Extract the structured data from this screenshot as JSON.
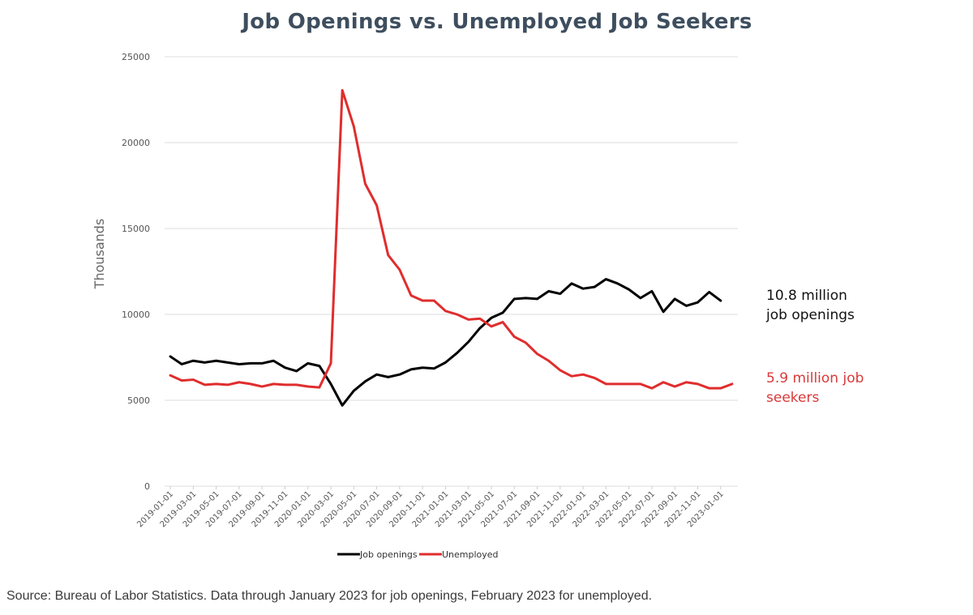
{
  "chart_data": {
    "type": "line",
    "title": "Job Openings vs. Unemployed Job Seekers",
    "xlabel": "",
    "ylabel": "Thousands",
    "ylim": [
      0,
      25000
    ],
    "yticks": [
      0,
      5000,
      10000,
      15000,
      20000,
      25000
    ],
    "grid": true,
    "legend_position": "bottom",
    "x": [
      "2019-01-01",
      "2019-02-01",
      "2019-03-01",
      "2019-04-01",
      "2019-05-01",
      "2019-06-01",
      "2019-07-01",
      "2019-08-01",
      "2019-09-01",
      "2019-10-01",
      "2019-11-01",
      "2019-12-01",
      "2020-01-01",
      "2020-02-01",
      "2020-03-01",
      "2020-04-01",
      "2020-05-01",
      "2020-06-01",
      "2020-07-01",
      "2020-08-01",
      "2020-09-01",
      "2020-10-01",
      "2020-11-01",
      "2020-12-01",
      "2021-01-01",
      "2021-02-01",
      "2021-03-01",
      "2021-04-01",
      "2021-05-01",
      "2021-06-01",
      "2021-07-01",
      "2021-08-01",
      "2021-09-01",
      "2021-10-01",
      "2021-11-01",
      "2021-12-01",
      "2022-01-01",
      "2022-02-01",
      "2022-03-01",
      "2022-04-01",
      "2022-05-01",
      "2022-06-01",
      "2022-07-01",
      "2022-08-01",
      "2022-09-01",
      "2022-10-01",
      "2022-11-01",
      "2022-12-01",
      "2023-01-01",
      "2023-02-01"
    ],
    "x_tick_labels": [
      "2019-01-01",
      "2019-03-01",
      "2019-05-01",
      "2019-07-01",
      "2019-09-01",
      "2019-11-01",
      "2020-01-01",
      "2020-03-01",
      "2020-05-01",
      "2020-07-01",
      "2020-09-01",
      "2020-11-01",
      "2021-01-01",
      "2021-03-01",
      "2021-05-01",
      "2021-07-01",
      "2021-09-01",
      "2021-11-01",
      "2022-01-01",
      "2022-03-01",
      "2022-05-01",
      "2022-07-01",
      "2022-09-01",
      "2022-11-01",
      "2023-01-01"
    ],
    "series": [
      {
        "name": "Job openings",
        "color": "#000000",
        "values": [
          7550,
          7100,
          7300,
          7200,
          7300,
          7200,
          7100,
          7150,
          7150,
          7300,
          6900,
          6700,
          7150,
          7000,
          5950,
          4700,
          5550,
          6100,
          6500,
          6350,
          6500,
          6800,
          6900,
          6850,
          7200,
          7750,
          8400,
          9200,
          9800,
          10100,
          10900,
          10950,
          10900,
          11350,
          11200,
          11800,
          11500,
          11600,
          12050,
          11800,
          11450,
          10950,
          11350,
          10150,
          10900,
          10500,
          10700,
          11300,
          10800,
          null
        ]
      },
      {
        "name": "Unemployed",
        "color": "#e02d2d",
        "values": [
          6450,
          6150,
          6200,
          5900,
          5950,
          5900,
          6050,
          5950,
          5800,
          5950,
          5900,
          5900,
          5800,
          5750,
          7150,
          23050,
          20950,
          17600,
          16350,
          13450,
          12600,
          11100,
          10800,
          10800,
          10200,
          10000,
          9700,
          9750,
          9300,
          9550,
          8700,
          8350,
          7700,
          7300,
          6750,
          6400,
          6500,
          6300,
          5950,
          5950,
          5950,
          5950,
          5700,
          6050,
          5800,
          6050,
          5950,
          5700,
          5700,
          5950
        ]
      }
    ],
    "annotations": [
      {
        "lines": [
          "10.8 million",
          "job openings"
        ],
        "color": "#111111"
      },
      {
        "lines": [
          "5.9 million job",
          "seekers"
        ],
        "color": "#d93a3a"
      }
    ]
  },
  "source_note": "Source: Bureau of Labor Statistics. Data through January 2023 for job openings, February 2023 for unemployed."
}
